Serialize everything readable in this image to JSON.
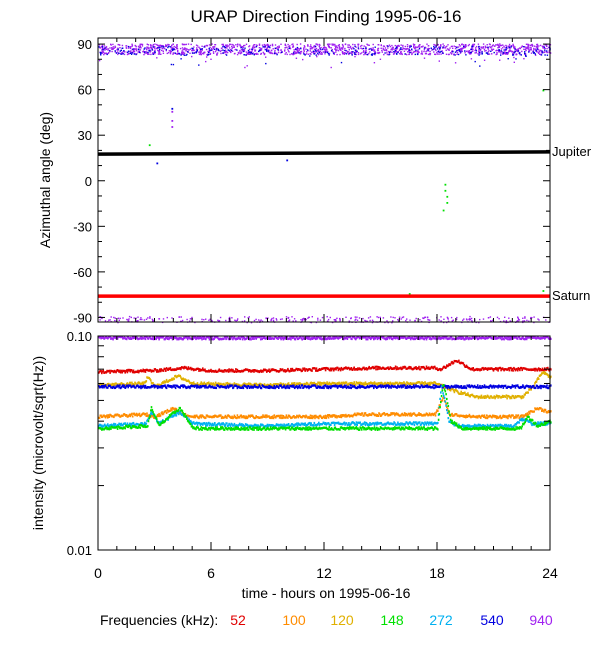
{
  "title": "URAP Direction Finding  1995-06-16",
  "xlabel": "time - hours on 1995-06-16",
  "legend": {
    "prefix": "Frequencies (kHz):",
    "items": [
      {
        "label": "52",
        "color": "#e00000"
      },
      {
        "label": "100",
        "color": "#ff8c00"
      },
      {
        "label": "120",
        "color": "#e0b000"
      },
      {
        "label": "148",
        "color": "#00e000"
      },
      {
        "label": "272",
        "color": "#00b0f0"
      },
      {
        "label": "540",
        "color": "#0000e0"
      },
      {
        "label": "940",
        "color": "#a020f0"
      }
    ]
  },
  "chart_data": [
    {
      "type": "scatter",
      "title": "URAP Direction Finding  1995-06-16",
      "xlabel": "",
      "ylabel": "Azimuthal angle (deg)",
      "xlim": [
        0,
        24
      ],
      "ylim": [
        -93,
        94
      ],
      "xticks": [
        0,
        6,
        12,
        18,
        24
      ],
      "yticks": [
        90,
        60,
        30,
        0,
        -30,
        -60,
        -90
      ],
      "reference_lines": [
        {
          "name": "Jupiter",
          "color": "#000000",
          "y_start": 17.5,
          "y_end": 19
        },
        {
          "name": "Saturn",
          "color": "#ff0000",
          "y_start": -76,
          "y_end": -76
        }
      ],
      "series": [
        {
          "frequency": "940",
          "color": "#a020f0",
          "band_center": 87,
          "band_spread": 7,
          "lower_band_center": -91,
          "lower_band_spread": 2
        },
        {
          "frequency": "540",
          "color": "#0000e0",
          "band_center": 86,
          "band_spread": 6
        }
      ],
      "outliers": [
        {
          "x": 2.7,
          "y": 24,
          "color": "#00e000"
        },
        {
          "x": 3.1,
          "y": 12,
          "color": "#0000e0"
        },
        {
          "x": 3.9,
          "y": 48,
          "color": "#0000e0"
        },
        {
          "x": 3.9,
          "y": 46,
          "color": "#a020f0"
        },
        {
          "x": 3.9,
          "y": 40,
          "color": "#a020f0"
        },
        {
          "x": 3.9,
          "y": 36,
          "color": "#a020f0"
        },
        {
          "x": 4.5,
          "y": 18,
          "color": "#00e000"
        },
        {
          "x": 10.0,
          "y": 14,
          "color": "#0000e0"
        },
        {
          "x": 18.4,
          "y": -2,
          "color": "#00e000"
        },
        {
          "x": 18.4,
          "y": -6,
          "color": "#00e000"
        },
        {
          "x": 18.5,
          "y": -10,
          "color": "#00e000"
        },
        {
          "x": 18.5,
          "y": -14,
          "color": "#00e000"
        },
        {
          "x": 18.3,
          "y": -19,
          "color": "#00e000"
        },
        {
          "x": 16.5,
          "y": -74,
          "color": "#00e000"
        },
        {
          "x": 23.6,
          "y": 60,
          "color": "#00e000"
        },
        {
          "x": 23.6,
          "y": -72,
          "color": "#00e000"
        }
      ]
    },
    {
      "type": "line",
      "title": "",
      "xlabel": "time - hours on 1995-06-16",
      "ylabel": "intensity (microvolt/sqrt(Hz))",
      "yscale": "log",
      "xlim": [
        0,
        24
      ],
      "ylim": [
        0.01,
        0.1
      ],
      "xticks": [
        0,
        6,
        12,
        18,
        24
      ],
      "yticks": [
        0.1,
        0.01
      ],
      "ytick_labels": [
        "0.10",
        "0.01"
      ],
      "series": [
        {
          "name": "940",
          "color": "#a020f0",
          "points": [
            [
              0,
              0.098
            ],
            [
              24,
              0.098
            ]
          ]
        },
        {
          "name": "52",
          "color": "#e00000",
          "points": [
            [
              0,
              0.068
            ],
            [
              3,
              0.069
            ],
            [
              4.5,
              0.071
            ],
            [
              6,
              0.069
            ],
            [
              9,
              0.069
            ],
            [
              12,
              0.07
            ],
            [
              15,
              0.071
            ],
            [
              17.8,
              0.071
            ],
            [
              18.2,
              0.07
            ],
            [
              19,
              0.077
            ],
            [
              19.8,
              0.07
            ],
            [
              22,
              0.07
            ],
            [
              24,
              0.07
            ]
          ]
        },
        {
          "name": "120",
          "color": "#e0b000",
          "points": [
            [
              0,
              0.059
            ],
            [
              2.4,
              0.06
            ],
            [
              2.6,
              0.064
            ],
            [
              3,
              0.058
            ],
            [
              4.2,
              0.065
            ],
            [
              5,
              0.06
            ],
            [
              9,
              0.059
            ],
            [
              12,
              0.06
            ],
            [
              14,
              0.06
            ],
            [
              17.9,
              0.06
            ],
            [
              18.3,
              0.058
            ],
            [
              19,
              0.055
            ],
            [
              20,
              0.052
            ],
            [
              22.5,
              0.052
            ],
            [
              23,
              0.057
            ],
            [
              23.6,
              0.068
            ],
            [
              24,
              0.064
            ]
          ]
        },
        {
          "name": "540",
          "color": "#0000e0",
          "points": [
            [
              0,
              0.058
            ],
            [
              12,
              0.058
            ],
            [
              18,
              0.058
            ],
            [
              24,
              0.058
            ]
          ]
        },
        {
          "name": "100",
          "color": "#ff8c00",
          "points": [
            [
              0,
              0.042
            ],
            [
              2.5,
              0.043
            ],
            [
              3,
              0.042
            ],
            [
              4,
              0.046
            ],
            [
              4.5,
              0.043
            ],
            [
              5,
              0.042
            ],
            [
              9,
              0.042
            ],
            [
              12,
              0.042
            ],
            [
              14,
              0.043
            ],
            [
              17.9,
              0.043
            ],
            [
              18.3,
              0.052
            ],
            [
              18.6,
              0.043
            ],
            [
              20,
              0.042
            ],
            [
              22.5,
              0.042
            ],
            [
              23.3,
              0.046
            ],
            [
              24,
              0.044
            ]
          ]
        },
        {
          "name": "272",
          "color": "#00b0f0",
          "points": [
            [
              0,
              0.038
            ],
            [
              2.5,
              0.039
            ],
            [
              2.8,
              0.044
            ],
            [
              3.2,
              0.039
            ],
            [
              4.3,
              0.044
            ],
            [
              5,
              0.039
            ],
            [
              9,
              0.038
            ],
            [
              12,
              0.039
            ],
            [
              15,
              0.039
            ],
            [
              18,
              0.039
            ],
            [
              18.2,
              0.058
            ],
            [
              18.6,
              0.04
            ],
            [
              19,
              0.038
            ],
            [
              22,
              0.038
            ],
            [
              22.5,
              0.041
            ],
            [
              23,
              0.039
            ],
            [
              24,
              0.039
            ]
          ]
        },
        {
          "name": "148",
          "color": "#00e000",
          "points": [
            [
              0,
              0.037
            ],
            [
              2.6,
              0.038
            ],
            [
              2.8,
              0.046
            ],
            [
              3.2,
              0.038
            ],
            [
              4.3,
              0.046
            ],
            [
              5,
              0.037
            ],
            [
              9,
              0.037
            ],
            [
              12,
              0.037
            ],
            [
              15,
              0.037
            ],
            [
              18,
              0.037
            ],
            [
              18.3,
              0.06
            ],
            [
              18.7,
              0.04
            ],
            [
              19.3,
              0.037
            ],
            [
              22.4,
              0.037
            ],
            [
              22.8,
              0.042
            ],
            [
              23.3,
              0.038
            ],
            [
              24,
              0.04
            ]
          ]
        }
      ]
    }
  ]
}
